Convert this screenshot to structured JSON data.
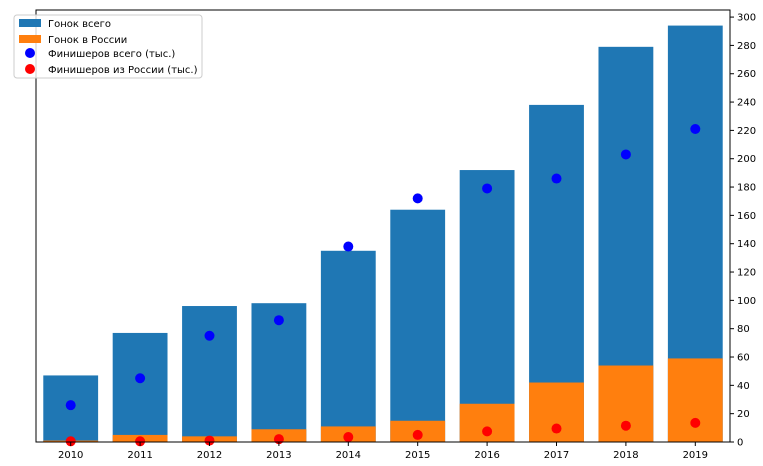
{
  "chart_data": {
    "type": "bar",
    "title": "",
    "xlabel": "",
    "ylabel": "",
    "categories": [
      "2010",
      "2011",
      "2012",
      "2013",
      "2014",
      "2015",
      "2016",
      "2017",
      "2018",
      "2019"
    ],
    "ylim": [
      0,
      305
    ],
    "y_ticks": [
      0,
      20,
      40,
      60,
      80,
      100,
      120,
      140,
      160,
      180,
      200,
      220,
      240,
      260,
      280,
      300
    ],
    "y_axis_side": "right",
    "grid": false,
    "legend_position": "top-left",
    "series": [
      {
        "name": "Гонок всего",
        "kind": "bar",
        "color": "#1f77b4",
        "values": [
          47,
          77,
          96,
          98,
          135,
          164,
          192,
          238,
          279,
          294
        ]
      },
      {
        "name": "Гонок в России",
        "kind": "bar",
        "color": "#ff7f0e",
        "values": [
          1,
          5,
          4,
          9,
          11,
          15,
          27,
          42,
          54,
          59
        ]
      },
      {
        "name": "Финишеров всего (тыс.)",
        "kind": "scatter",
        "color": "#0000ff",
        "values": [
          26,
          45,
          75,
          86,
          138,
          172,
          179,
          186,
          203,
          221
        ]
      },
      {
        "name": "Финишеров из России (тыс.)",
        "kind": "scatter",
        "color": "#ff0000",
        "values": [
          0.5,
          0.5,
          1,
          2,
          3.5,
          5,
          7.5,
          9.5,
          11.5,
          13.5
        ]
      }
    ]
  }
}
